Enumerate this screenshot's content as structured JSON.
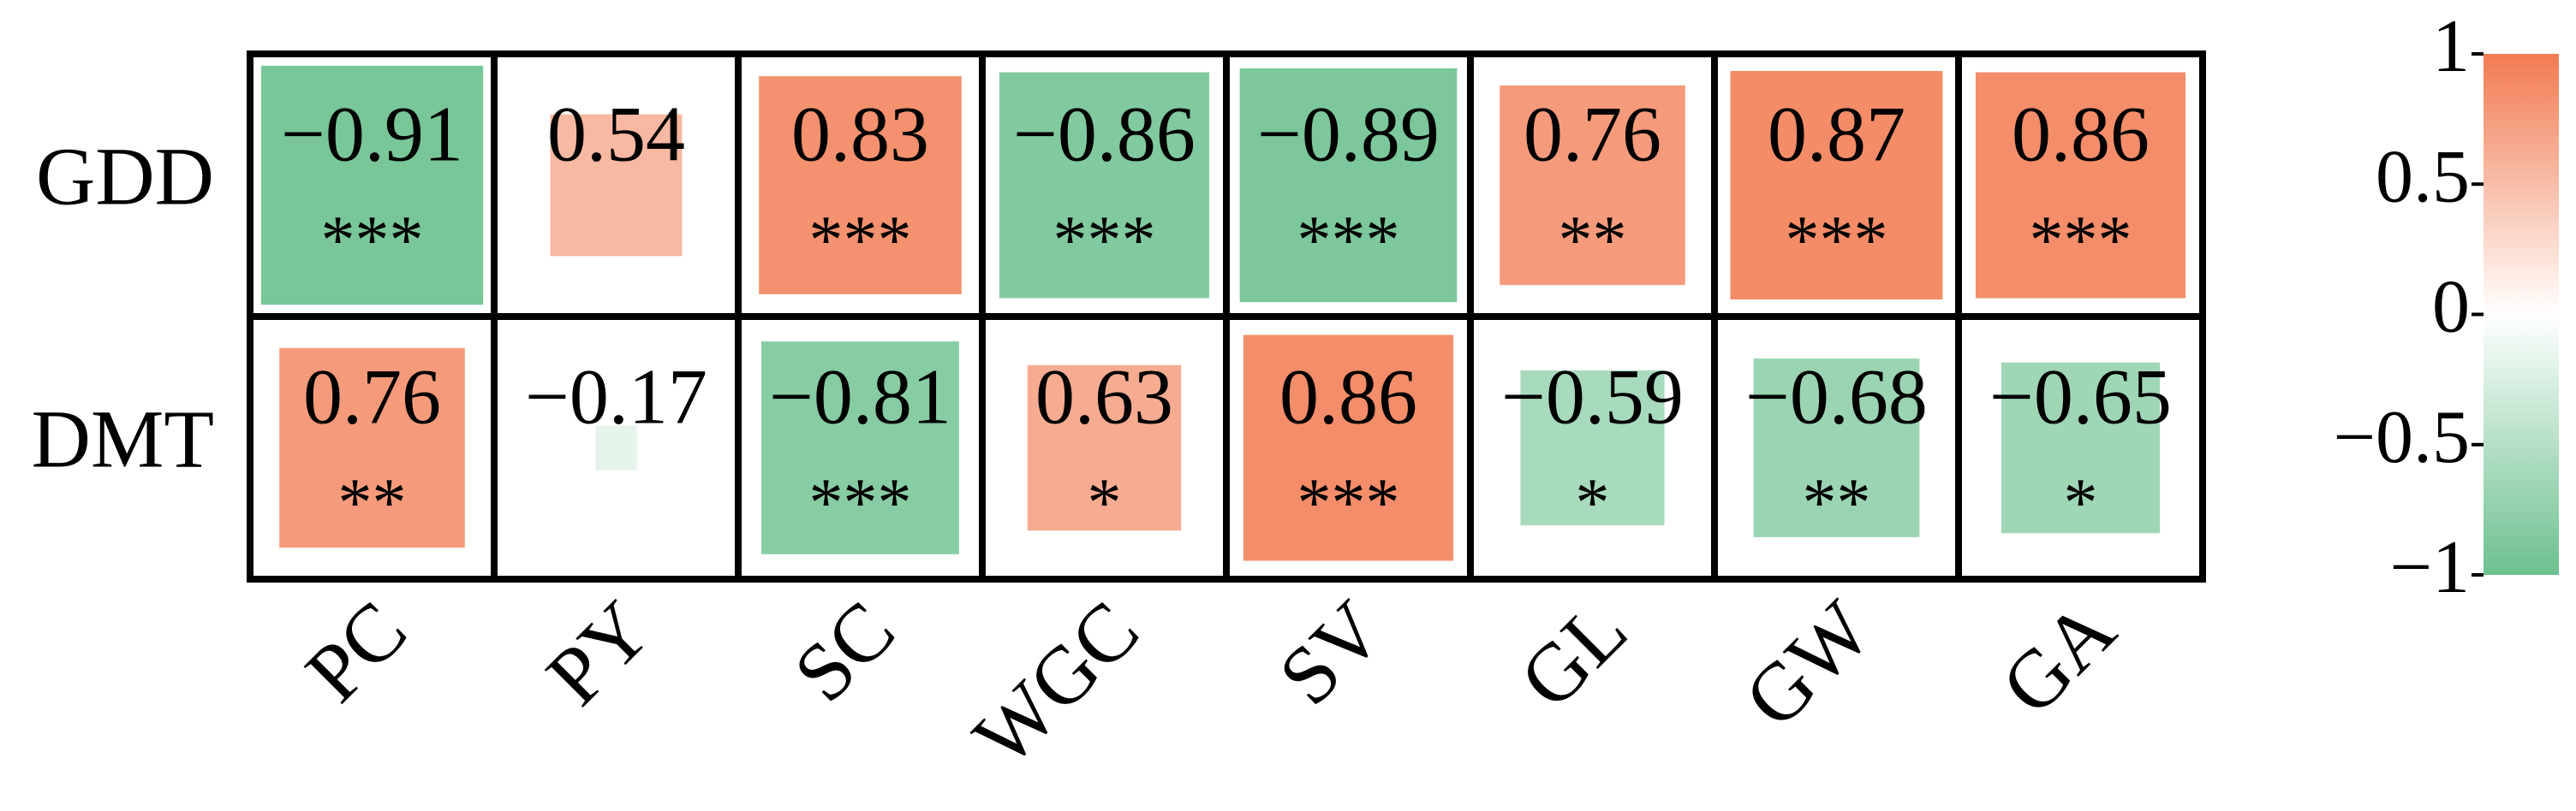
{
  "chart_data": {
    "type": "heatmap",
    "rows": [
      "GDD",
      "DMT"
    ],
    "columns": [
      "PC",
      "PY",
      "SC",
      "WGC",
      "SV",
      "GL",
      "GW",
      "GA"
    ],
    "values": [
      [
        -0.91,
        0.54,
        0.83,
        -0.86,
        -0.89,
        0.76,
        0.87,
        0.86
      ],
      [
        0.76,
        -0.17,
        -0.81,
        0.63,
        0.86,
        -0.59,
        -0.68,
        -0.65
      ]
    ],
    "value_labels": [
      [
        "−0.91",
        "0.54",
        "0.83",
        "−0.86",
        "−0.89",
        "0.76",
        "0.87",
        "0.86"
      ],
      [
        "0.76",
        "−0.17",
        "−0.81",
        "0.63",
        "0.86",
        "−0.59",
        "−0.68",
        "−0.65"
      ]
    ],
    "significance": [
      [
        "***",
        null,
        "***",
        "***",
        "***",
        "**",
        "***",
        "***"
      ],
      [
        "**",
        null,
        "***",
        "*",
        "***",
        "*",
        "**",
        "*"
      ]
    ],
    "colorscale": [
      "#6cc08f",
      "#ffffff",
      "#f27b52"
    ],
    "clim": [
      -1,
      1
    ],
    "cticks": [
      1,
      0.5,
      0,
      {
        "value": -0.5,
        "label": "−0.5"
      },
      {
        "value": -1,
        "label": "−1"
      }
    ]
  }
}
